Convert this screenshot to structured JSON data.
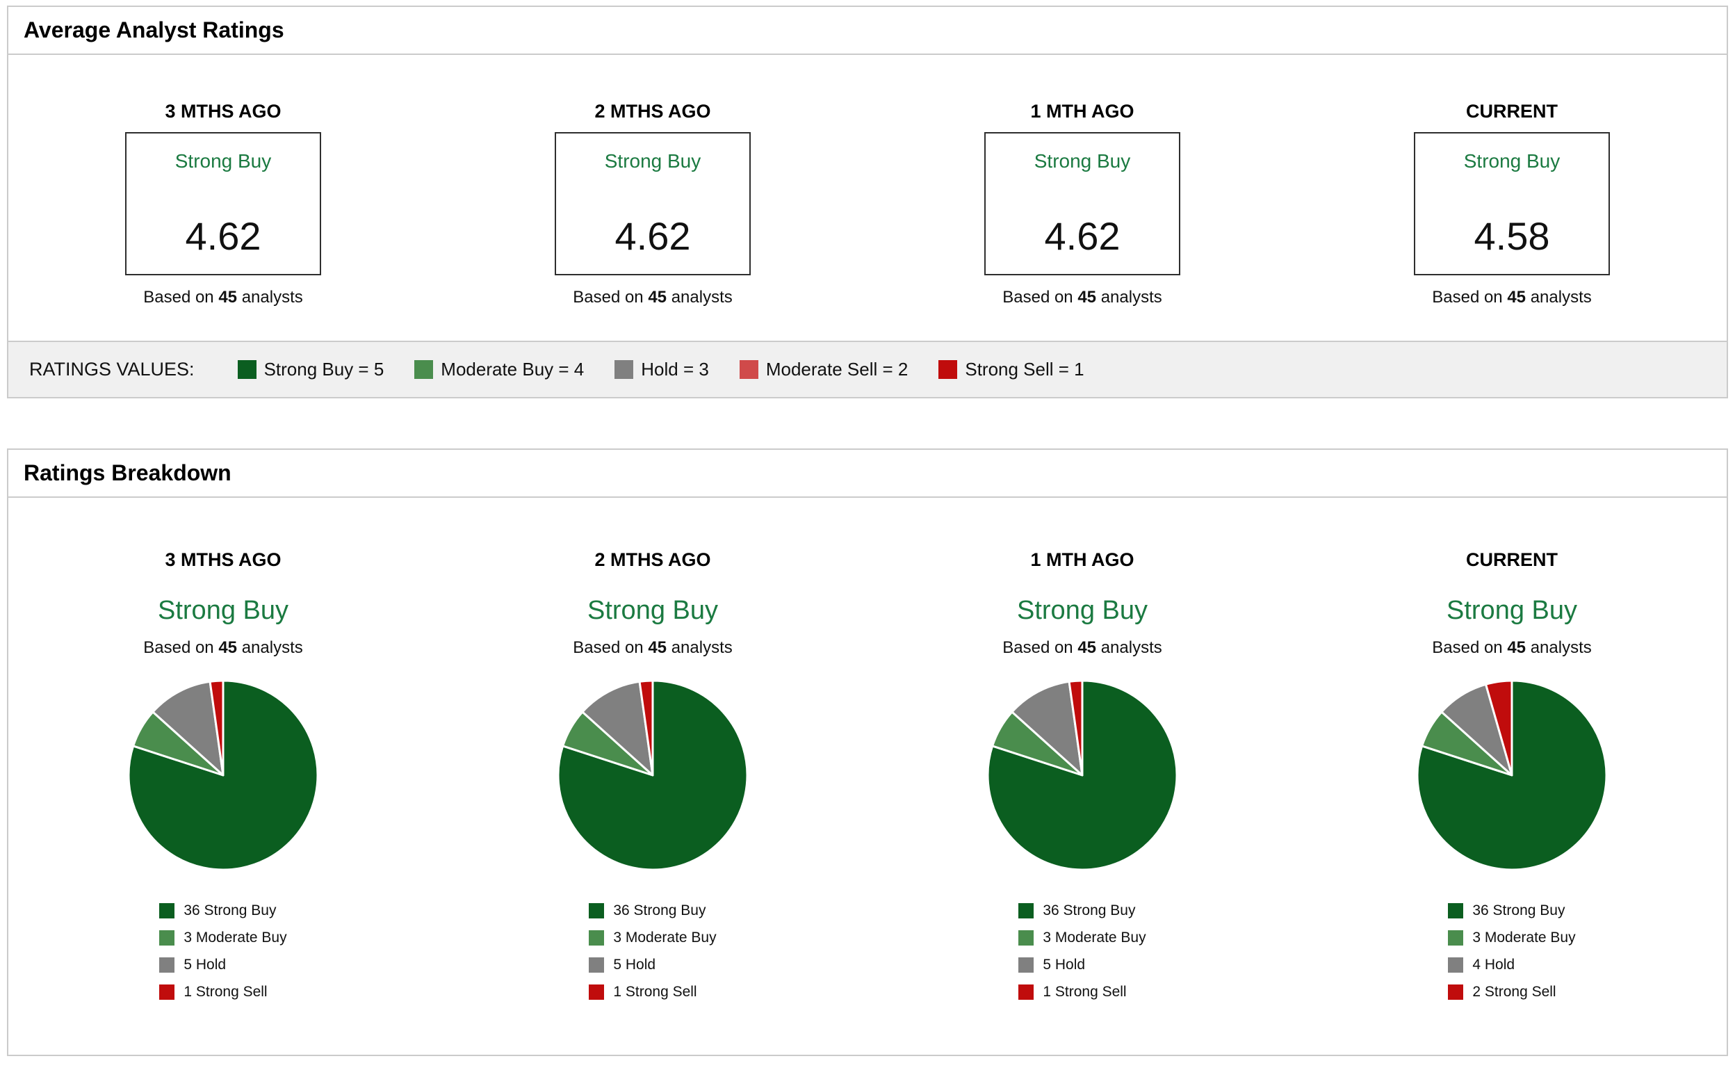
{
  "labels": {
    "based_on_prefix": "Based on",
    "based_on_suffix": "analysts"
  },
  "avg_section": {
    "title": "Average Analyst Ratings",
    "columns": [
      {
        "period": "3 MTHS AGO",
        "rating": "Strong Buy",
        "score": "4.62",
        "analysts": "45"
      },
      {
        "period": "2 MTHS AGO",
        "rating": "Strong Buy",
        "score": "4.62",
        "analysts": "45"
      },
      {
        "period": "1 MTH AGO",
        "rating": "Strong Buy",
        "score": "4.62",
        "analysts": "45"
      },
      {
        "period": "CURRENT",
        "rating": "Strong Buy",
        "score": "4.58",
        "analysts": "45"
      }
    ]
  },
  "ratings_values": {
    "label": "RATINGS VALUES:",
    "items": [
      {
        "label": "Strong Buy = 5",
        "color": "#0b5e20"
      },
      {
        "label": "Moderate Buy = 4",
        "color": "#4a8d4d"
      },
      {
        "label": "Hold = 3",
        "color": "#808080"
      },
      {
        "label": "Moderate Sell = 2",
        "color": "#d04a4a"
      },
      {
        "label": "Strong Sell = 1",
        "color": "#c00c0c"
      }
    ]
  },
  "breakdown_section": {
    "title": "Ratings Breakdown"
  },
  "chart_data": [
    {
      "type": "pie",
      "title": "3 MTHS AGO",
      "rating": "Strong Buy",
      "analysts": "45",
      "slices": [
        {
          "label": "Strong Buy",
          "value": 36,
          "color": "#0b5e20"
        },
        {
          "label": "Moderate Buy",
          "value": 3,
          "color": "#4a8d4d"
        },
        {
          "label": "Hold",
          "value": 5,
          "color": "#808080"
        },
        {
          "label": "Strong Sell",
          "value": 1,
          "color": "#c00c0c"
        }
      ]
    },
    {
      "type": "pie",
      "title": "2 MTHS AGO",
      "rating": "Strong Buy",
      "analysts": "45",
      "slices": [
        {
          "label": "Strong Buy",
          "value": 36,
          "color": "#0b5e20"
        },
        {
          "label": "Moderate Buy",
          "value": 3,
          "color": "#4a8d4d"
        },
        {
          "label": "Hold",
          "value": 5,
          "color": "#808080"
        },
        {
          "label": "Strong Sell",
          "value": 1,
          "color": "#c00c0c"
        }
      ]
    },
    {
      "type": "pie",
      "title": "1 MTH AGO",
      "rating": "Strong Buy",
      "analysts": "45",
      "slices": [
        {
          "label": "Strong Buy",
          "value": 36,
          "color": "#0b5e20"
        },
        {
          "label": "Moderate Buy",
          "value": 3,
          "color": "#4a8d4d"
        },
        {
          "label": "Hold",
          "value": 5,
          "color": "#808080"
        },
        {
          "label": "Strong Sell",
          "value": 1,
          "color": "#c00c0c"
        }
      ]
    },
    {
      "type": "pie",
      "title": "CURRENT",
      "rating": "Strong Buy",
      "analysts": "45",
      "slices": [
        {
          "label": "Strong Buy",
          "value": 36,
          "color": "#0b5e20"
        },
        {
          "label": "Moderate Buy",
          "value": 3,
          "color": "#4a8d4d"
        },
        {
          "label": "Hold",
          "value": 4,
          "color": "#808080"
        },
        {
          "label": "Strong Sell",
          "value": 2,
          "color": "#c00c0c"
        }
      ]
    }
  ]
}
